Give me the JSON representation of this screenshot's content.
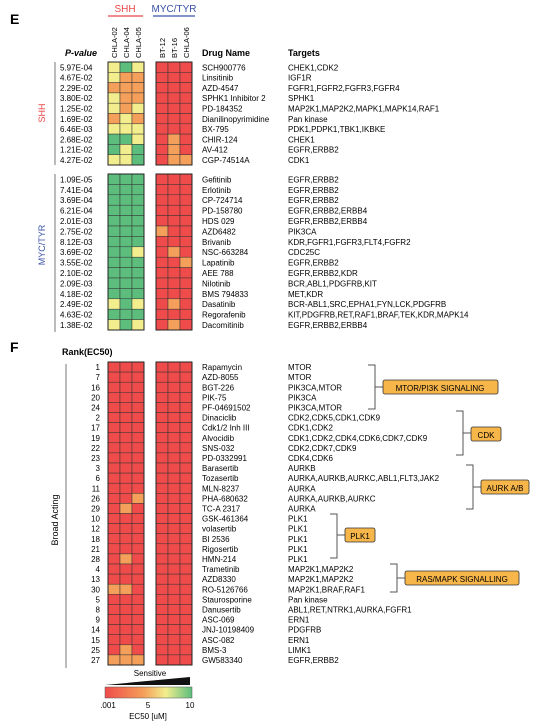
{
  "panelE": {
    "label": "E",
    "pvalue_header": "P-value",
    "druglist_header": "Drug Name",
    "targets_header": "Targets",
    "group_top_labels": [
      "SHH",
      "MYC/TYR"
    ],
    "columns": [
      "CHLA-02",
      "CHLA-04",
      "CHLA-05",
      "BT-12",
      "BT-16",
      "CHLA-06"
    ],
    "side_groups": [
      "SHH",
      "MYC/TYR"
    ],
    "colors": {
      "shh": "#e8484a",
      "myc": "#3a53a4",
      "red": "#f04b4b",
      "orange": "#f4a05a",
      "yellow": "#f2ee8e",
      "green": "#5cbd7d"
    },
    "rows": [
      {
        "group": "SHH",
        "p": "5.97E-04",
        "drug": "SCH900776",
        "targets": "CHEK1,CDK2",
        "cells": [
          2,
          3,
          2,
          0,
          0,
          0
        ]
      },
      {
        "group": "SHH",
        "p": "4.67E-02",
        "drug": "Linsitinib",
        "targets": "IGF1R",
        "cells": [
          2,
          1,
          1,
          0,
          0,
          0
        ]
      },
      {
        "group": "SHH",
        "p": "2.29E-02",
        "drug": "AZD-4547",
        "targets": "FGFR1,FGFR2,FGFR3,FGFR4",
        "cells": [
          1,
          1,
          1,
          0,
          0,
          0
        ]
      },
      {
        "group": "SHH",
        "p": "3.80E-02",
        "drug": "SPHK1 Inhibitor 2",
        "targets": "SPHK1",
        "cells": [
          2,
          1,
          1,
          0,
          0,
          0
        ]
      },
      {
        "group": "SHH",
        "p": "1.25E-02",
        "drug": "PD-184352",
        "targets": "MAP2K1,MAP2K2,MAPK1,MAPK14,RAF1",
        "cells": [
          2,
          1,
          2,
          0,
          0,
          0
        ]
      },
      {
        "group": "SHH",
        "p": "1.69E-02",
        "drug": "Dianilinopyrimidine",
        "targets": "Pan kinase",
        "cells": [
          1,
          2,
          1,
          0,
          0,
          0
        ]
      },
      {
        "group": "SHH",
        "p": "6.46E-03",
        "drug": "BX-795",
        "targets": "PDK1,PDPK1,TBK1,IKBKE",
        "cells": [
          2,
          2,
          2,
          0,
          0,
          0
        ]
      },
      {
        "group": "SHH",
        "p": "2.68E-02",
        "drug": "CHIR-124",
        "targets": "CHEK1",
        "cells": [
          3,
          3,
          2,
          0,
          1,
          0
        ]
      },
      {
        "group": "SHH",
        "p": "1.21E-02",
        "drug": "AV-412",
        "targets": "EGFR,ERBB2",
        "cells": [
          3,
          2,
          3,
          0,
          1,
          0
        ]
      },
      {
        "group": "SHH",
        "p": "4.27E-02",
        "drug": "CGP-74514A",
        "targets": "CDK1",
        "cells": [
          2,
          2,
          3,
          0,
          1,
          1
        ]
      },
      {
        "group": "MYC/TYR",
        "p": "1.09E-05",
        "drug": "Gefitinib",
        "targets": "EGFR,ERBB2",
        "cells": [
          3,
          3,
          3,
          0,
          0,
          0
        ]
      },
      {
        "group": "MYC/TYR",
        "p": "7.41E-04",
        "drug": "Erlotinib",
        "targets": "EGFR,ERBB2",
        "cells": [
          3,
          3,
          3,
          0,
          0,
          0
        ]
      },
      {
        "group": "MYC/TYR",
        "p": "3.69E-04",
        "drug": "CP-724714",
        "targets": "EGFR,ERBB2",
        "cells": [
          3,
          3,
          3,
          0,
          0,
          0
        ]
      },
      {
        "group": "MYC/TYR",
        "p": "6.21E-04",
        "drug": "PD-158780",
        "targets": "EGFR,ERBB2,ERBB4",
        "cells": [
          3,
          3,
          3,
          0,
          0,
          0
        ]
      },
      {
        "group": "MYC/TYR",
        "p": "2.01E-03",
        "drug": "HDS 029",
        "targets": "EGFR,ERBB2,ERBB4",
        "cells": [
          3,
          3,
          3,
          0,
          0,
          0
        ]
      },
      {
        "group": "MYC/TYR",
        "p": "2.75E-02",
        "drug": "AZD6482",
        "targets": "PIK3CA",
        "cells": [
          3,
          3,
          3,
          1,
          0,
          0
        ]
      },
      {
        "group": "MYC/TYR",
        "p": "8.12E-03",
        "drug": "Brivanib",
        "targets": "KDR,FGFR1,FGFR3,FLT4,FGFR2",
        "cells": [
          3,
          3,
          3,
          0,
          0,
          0
        ]
      },
      {
        "group": "MYC/TYR",
        "p": "3.69E-02",
        "drug": "NSC-663284",
        "targets": "CDC25C",
        "cells": [
          3,
          3,
          2,
          0,
          1,
          0
        ]
      },
      {
        "group": "MYC/TYR",
        "p": "3.55E-02",
        "drug": "Lapatinib",
        "targets": "EGFR,ERBB2",
        "cells": [
          3,
          3,
          3,
          0,
          0,
          1
        ]
      },
      {
        "group": "MYC/TYR",
        "p": "2.10E-02",
        "drug": "AEE 788",
        "targets": "EGFR,ERBB2,KDR",
        "cells": [
          3,
          3,
          3,
          0,
          0,
          0
        ]
      },
      {
        "group": "MYC/TYR",
        "p": "2.09E-03",
        "drug": "Nilotinib",
        "targets": "BCR,ABL1,PDGFRB,KIT",
        "cells": [
          3,
          3,
          3,
          0,
          0,
          0
        ]
      },
      {
        "group": "MYC/TYR",
        "p": "4.18E-02",
        "drug": "BMS 794833",
        "targets": "MET,KDR",
        "cells": [
          3,
          3,
          3,
          0,
          0,
          0
        ]
      },
      {
        "group": "MYC/TYR",
        "p": "2.49E-02",
        "drug": "Dasatinib",
        "targets": "BCR-ABL1,SRC,EPHA1,FYN,LCK,PDGFRB",
        "cells": [
          2,
          3,
          2,
          0,
          1,
          0
        ]
      },
      {
        "group": "MYC/TYR",
        "p": "4.63E-02",
        "drug": "Regorafenib",
        "targets": "KIT,PDGFRB,RET,RAF1,BRAF,TEK,KDR,MAPK14",
        "cells": [
          3,
          3,
          3,
          0,
          0,
          0
        ]
      },
      {
        "group": "MYC/TYR",
        "p": "1.38E-02",
        "drug": "Dacomitinib",
        "targets": "EGFR,ERBB2,ERBB4",
        "cells": [
          2,
          3,
          2,
          0,
          1,
          0
        ]
      }
    ]
  },
  "panelF": {
    "label": "F",
    "rank_header": "Rank(EC50)",
    "side_label": "Broad Acting",
    "legend": {
      "sensitive": "Sensitive",
      "ticks": [
        ".001",
        "5",
        "10"
      ],
      "unit": "EC50 [uM]"
    },
    "categories": [
      "MTOR/PI3K SIGNALING",
      "CDK",
      "AURK A/B",
      "PLK1",
      "RAS/MAPK SIGNALLING"
    ],
    "rows": [
      {
        "rank": "1",
        "drug": "Rapamycin",
        "targets": "MTOR",
        "cells": [
          0,
          0,
          0,
          0,
          0,
          0
        ]
      },
      {
        "rank": "7",
        "drug": "AZD-8055",
        "targets": "MTOR",
        "cells": [
          0,
          0,
          0,
          0,
          0,
          0
        ]
      },
      {
        "rank": "16",
        "drug": "BGT-226",
        "targets": "PIK3CA,MTOR",
        "cells": [
          0,
          0,
          0,
          0,
          0,
          0
        ]
      },
      {
        "rank": "20",
        "drug": "PIK-75",
        "targets": "PIK3CA",
        "cells": [
          0,
          0,
          0,
          0,
          0,
          0
        ]
      },
      {
        "rank": "24",
        "drug": "PF-04691502",
        "targets": "PIK3CA,MTOR",
        "cells": [
          0,
          0,
          0,
          0,
          0,
          0
        ]
      },
      {
        "rank": "2",
        "drug": "Dinaciclib",
        "targets": "CDK2,CDK5,CDK1,CDK9",
        "cells": [
          0,
          0,
          0,
          0,
          0,
          0
        ]
      },
      {
        "rank": "17",
        "drug": "Cdk1/2 Inh III",
        "targets": "CDK1,CDK2",
        "cells": [
          0,
          0,
          0,
          0,
          0,
          0
        ]
      },
      {
        "rank": "19",
        "drug": "Alvocidib",
        "targets": "CDK1,CDK2,CDK4,CDK6,CDK7,CDK9",
        "cells": [
          0,
          0,
          0,
          0,
          0,
          0
        ]
      },
      {
        "rank": "22",
        "drug": "SNS-032",
        "targets": "CDK2,CDK7,CDK9",
        "cells": [
          0,
          0,
          0,
          0,
          0,
          0
        ]
      },
      {
        "rank": "23",
        "drug": "PD-0332991",
        "targets": "CDK4,CDK6",
        "cells": [
          0,
          0,
          0,
          0,
          0,
          0
        ]
      },
      {
        "rank": "3",
        "drug": "Barasertib",
        "targets": "AURKB",
        "cells": [
          0,
          0,
          0,
          0,
          0,
          0
        ]
      },
      {
        "rank": "6",
        "drug": "Tozasertib",
        "targets": "AURKA,AURKB,AURKC,ABL1,FLT3,JAK2",
        "cells": [
          0,
          0,
          0,
          0,
          0,
          0
        ]
      },
      {
        "rank": "11",
        "drug": "MLN-8237",
        "targets": "AURKA",
        "cells": [
          0,
          0,
          0,
          0,
          0,
          0
        ]
      },
      {
        "rank": "26",
        "drug": "PHA-680632",
        "targets": "AURKA,AURKB,AURKC",
        "cells": [
          0,
          0,
          1,
          0,
          0,
          0
        ]
      },
      {
        "rank": "29",
        "drug": "TC-A 2317",
        "targets": "AURKA",
        "cells": [
          0,
          1,
          0,
          0,
          0,
          0
        ]
      },
      {
        "rank": "10",
        "drug": "GSK-461364",
        "targets": "PLK1",
        "cells": [
          0,
          0,
          0,
          0,
          0,
          0
        ]
      },
      {
        "rank": "12",
        "drug": "volasertib",
        "targets": "PLK1",
        "cells": [
          0,
          0,
          0,
          0,
          0,
          0
        ]
      },
      {
        "rank": "18",
        "drug": "BI 2536",
        "targets": "PLK1",
        "cells": [
          0,
          0,
          0,
          0,
          0,
          0
        ]
      },
      {
        "rank": "21",
        "drug": "Rigosertib",
        "targets": "PLK1",
        "cells": [
          0,
          0,
          0,
          0,
          0,
          0
        ]
      },
      {
        "rank": "28",
        "drug": "HMN-214",
        "targets": "PLK1",
        "cells": [
          0,
          1,
          0,
          0,
          0,
          0
        ]
      },
      {
        "rank": "4",
        "drug": "Trametinib",
        "targets": "MAP2K1,MAP2K2",
        "cells": [
          0,
          0,
          0,
          0,
          0,
          0
        ]
      },
      {
        "rank": "13",
        "drug": "AZD8330",
        "targets": "MAP2K1,MAP2K2",
        "cells": [
          0,
          0,
          0,
          0,
          0,
          0
        ]
      },
      {
        "rank": "30",
        "drug": "RO-5126766",
        "targets": "MAP2K1,BRAF,RAF1",
        "cells": [
          1,
          1,
          0,
          0,
          0,
          0
        ]
      },
      {
        "rank": "5",
        "drug": "Staurosporine",
        "targets": "Pan kinase",
        "cells": [
          0,
          0,
          0,
          0,
          0,
          0
        ]
      },
      {
        "rank": "8",
        "drug": "Danusertib",
        "targets": "ABL1,RET,NTRK1,AURKA,FGFR1",
        "cells": [
          0,
          0,
          0,
          0,
          0,
          0
        ]
      },
      {
        "rank": "9",
        "drug": "ASC-069",
        "targets": "ERN1",
        "cells": [
          0,
          0,
          0,
          0,
          0,
          0
        ]
      },
      {
        "rank": "14",
        "drug": "JNJ-10198409",
        "targets": "PDGFRB",
        "cells": [
          0,
          0,
          0,
          0,
          0,
          0
        ]
      },
      {
        "rank": "15",
        "drug": "ASC-082",
        "targets": "ERN1",
        "cells": [
          0,
          0,
          0,
          0,
          0,
          0
        ]
      },
      {
        "rank": "25",
        "drug": "BMS-3",
        "targets": "LIMK1",
        "cells": [
          0,
          1,
          0,
          0,
          0,
          0
        ]
      },
      {
        "rank": "27",
        "drug": "GW583340",
        "targets": "EGFR,ERBB2",
        "cells": [
          1,
          1,
          1,
          0,
          0,
          0
        ]
      }
    ]
  }
}
